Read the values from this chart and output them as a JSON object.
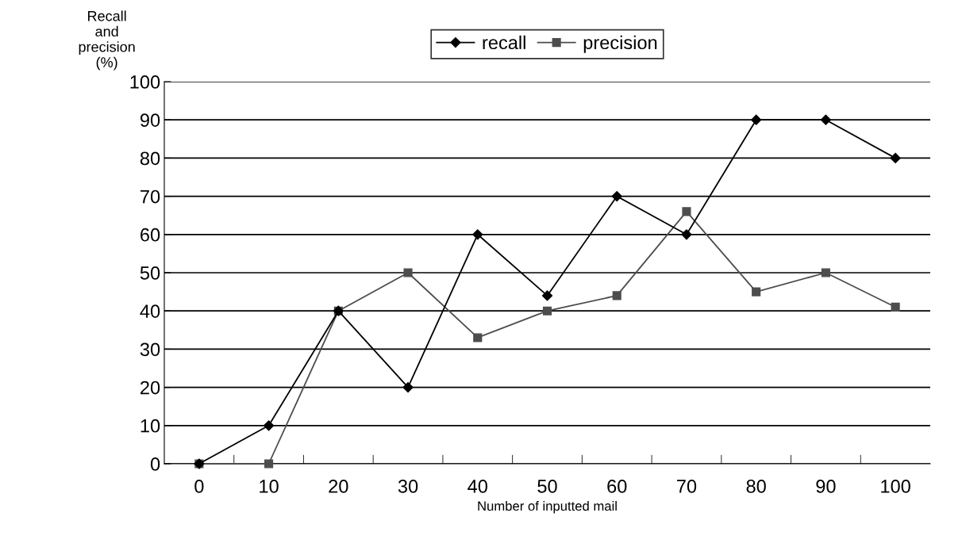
{
  "chart_data": {
    "type": "line",
    "xlabel": "Number of inputted mail",
    "ylabel": "Recall\nand\nprecision\n(%)",
    "categories": [
      "0",
      "10",
      "20",
      "30",
      "40",
      "50",
      "60",
      "70",
      "80",
      "90",
      "100"
    ],
    "series": [
      {
        "name": "recall",
        "color": "#000000",
        "marker": "diamond",
        "values": [
          0,
          10,
          40,
          20,
          60,
          44,
          70,
          60,
          90,
          90,
          80
        ]
      },
      {
        "name": "precision",
        "color": "#4d4d4d",
        "marker": "square",
        "values": [
          0,
          0,
          40,
          50,
          33,
          40,
          44,
          66,
          45,
          50,
          41
        ]
      }
    ],
    "ylim": [
      0,
      100
    ],
    "yticks": [
      0,
      10,
      20,
      30,
      40,
      50,
      60,
      70,
      80,
      90,
      100
    ],
    "grid": "y",
    "legend": "top",
    "line_style": "solid"
  }
}
